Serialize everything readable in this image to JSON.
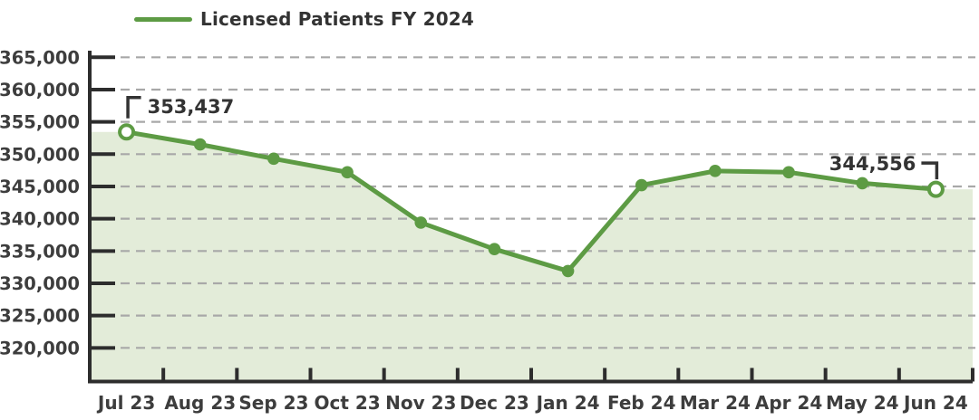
{
  "legend": {
    "label": "Licensed Patients FY 2024"
  },
  "colors": {
    "line": "#5d9b44",
    "marker_fill": "#5d9b44",
    "endpoint_fill": "#ffffff",
    "area": "#e3ecd9",
    "grid": "#a8a8a8",
    "axis": "#2d2d2d",
    "tick_label": "#3d3d3d",
    "annotation": "#333333",
    "background": "#ffffff"
  },
  "chart_data": {
    "type": "line",
    "title": "Licensed Patients FY 2024",
    "legend_entries": [
      "Licensed Patients FY 2024"
    ],
    "legend_position": "top-left",
    "categories": [
      "Jul 23",
      "Aug 23",
      "Sep 23",
      "Oct 23",
      "Nov 23",
      "Dec 23",
      "Jan 24",
      "Feb 24",
      "Mar 24",
      "Apr 24",
      "May 24",
      "Jun 24"
    ],
    "series": [
      {
        "name": "Licensed Patients FY 2024",
        "values": [
          353437,
          351500,
          349300,
          347200,
          339400,
          335300,
          331900,
          345200,
          347400,
          347200,
          345500,
          344556
        ]
      }
    ],
    "xlabel": "",
    "ylabel": "",
    "ylim": [
      320000,
      365000
    ],
    "ytick_step": 5000,
    "ytick_labels": [
      "365,000",
      "360,000",
      "355,000",
      "350,000",
      "345,000",
      "340,000",
      "335,000",
      "330,000",
      "325,000",
      "320,000"
    ],
    "grid": "horizontal-dashed",
    "area_fill": true,
    "annotations": [
      {
        "index": 0,
        "category": "Jul 23",
        "label": "353,437",
        "side": "right"
      },
      {
        "index": 11,
        "category": "Jun 24",
        "label": "344,556",
        "side": "left"
      }
    ]
  }
}
